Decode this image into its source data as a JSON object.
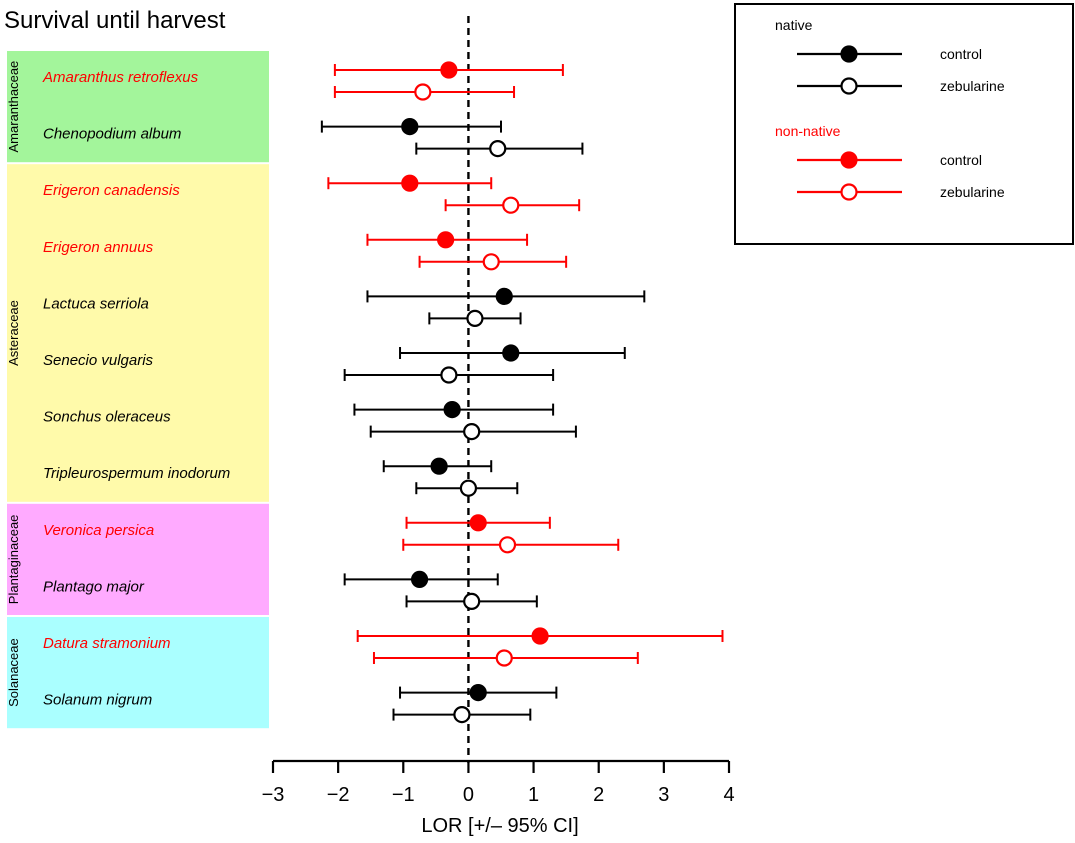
{
  "chart_data": {
    "type": "forest",
    "title": "Survival until harvest",
    "xlabel": "LOR [+/– 95% CI]",
    "xlim": [
      -3,
      4
    ],
    "xticks": [
      -3,
      -2,
      -1,
      0,
      1,
      2,
      3,
      4
    ],
    "xtick_labels": [
      "−3",
      "−2",
      "−1",
      "0",
      "1",
      "2",
      "3",
      "4"
    ],
    "reference_line": 0,
    "families": [
      {
        "name": "Amaranthaceae",
        "color": "#a3f59b",
        "species": [
          "Amaranthus retroflexus",
          "Chenopodium album"
        ]
      },
      {
        "name": "Asteraceae",
        "color": "#fffaaa",
        "species": [
          "Erigeron canadensis",
          "Erigeron annuus",
          "Lactuca serriola",
          "Senecio vulgaris",
          "Sonchus oleraceus",
          "Tripleurospermum inodorum"
        ]
      },
      {
        "name": "Plantaginaceae",
        "color": "#ffaaff",
        "species": [
          "Veronica persica",
          "Plantago major"
        ]
      },
      {
        "name": "Solanaceae",
        "color": "#aaffff",
        "species": [
          "Datura stramonium",
          "Solanum nigrum"
        ]
      }
    ],
    "species": [
      {
        "name": "Amaranthus retroflexus",
        "origin": "non-native",
        "control": {
          "estimate": -0.3,
          "lower": -2.05,
          "upper": 1.45
        },
        "zebularine": {
          "estimate": -0.7,
          "lower": -2.05,
          "upper": 0.7
        }
      },
      {
        "name": "Chenopodium album",
        "origin": "native",
        "control": {
          "estimate": -0.9,
          "lower": -2.25,
          "upper": 0.5
        },
        "zebularine": {
          "estimate": 0.45,
          "lower": -0.8,
          "upper": 1.75
        }
      },
      {
        "name": "Erigeron canadensis",
        "origin": "non-native",
        "control": {
          "estimate": -0.9,
          "lower": -2.15,
          "upper": 0.35
        },
        "zebularine": {
          "estimate": 0.65,
          "lower": -0.35,
          "upper": 1.7
        }
      },
      {
        "name": "Erigeron annuus",
        "origin": "non-native",
        "control": {
          "estimate": -0.35,
          "lower": -1.55,
          "upper": 0.9
        },
        "zebularine": {
          "estimate": 0.35,
          "lower": -0.75,
          "upper": 1.5
        }
      },
      {
        "name": "Lactuca serriola",
        "origin": "native",
        "control": {
          "estimate": 0.55,
          "lower": -1.55,
          "upper": 2.7
        },
        "zebularine": {
          "estimate": 0.1,
          "lower": -0.6,
          "upper": 0.8
        }
      },
      {
        "name": "Senecio vulgaris",
        "origin": "native",
        "control": {
          "estimate": 0.65,
          "lower": -1.05,
          "upper": 2.4
        },
        "zebularine": {
          "estimate": -0.3,
          "lower": -1.9,
          "upper": 1.3
        }
      },
      {
        "name": "Sonchus oleraceus",
        "origin": "native",
        "control": {
          "estimate": -0.25,
          "lower": -1.75,
          "upper": 1.3
        },
        "zebularine": {
          "estimate": 0.05,
          "lower": -1.5,
          "upper": 1.65
        }
      },
      {
        "name": "Tripleurospermum inodorum",
        "origin": "native",
        "control": {
          "estimate": -0.45,
          "lower": -1.3,
          "upper": 0.35
        },
        "zebularine": {
          "estimate": 0.0,
          "lower": -0.8,
          "upper": 0.75
        }
      },
      {
        "name": "Veronica persica",
        "origin": "non-native",
        "control": {
          "estimate": 0.15,
          "lower": -0.95,
          "upper": 1.25
        },
        "zebularine": {
          "estimate": 0.6,
          "lower": -1.0,
          "upper": 2.3
        }
      },
      {
        "name": "Plantago major",
        "origin": "native",
        "control": {
          "estimate": -0.75,
          "lower": -1.9,
          "upper": 0.45
        },
        "zebularine": {
          "estimate": 0.05,
          "lower": -0.95,
          "upper": 1.05
        }
      },
      {
        "name": "Datura stramonium",
        "origin": "non-native",
        "control": {
          "estimate": 1.1,
          "lower": -1.7,
          "upper": 3.9
        },
        "zebularine": {
          "estimate": 0.55,
          "lower": -1.45,
          "upper": 2.6
        }
      },
      {
        "name": "Solanum nigrum",
        "origin": "native",
        "control": {
          "estimate": 0.15,
          "lower": -1.05,
          "upper": 1.35
        },
        "zebularine": {
          "estimate": -0.1,
          "lower": -1.15,
          "upper": 0.95
        }
      }
    ],
    "colors": {
      "native": "#000000",
      "non-native": "#ff0000"
    },
    "legend": {
      "placement": "top-right",
      "groups": [
        {
          "label": "native",
          "color": "#000000",
          "entries": [
            "control",
            "zebularine"
          ]
        },
        {
          "label": "non-native",
          "color": "#ff0000",
          "entries": [
            "control",
            "zebularine"
          ]
        }
      ]
    }
  }
}
